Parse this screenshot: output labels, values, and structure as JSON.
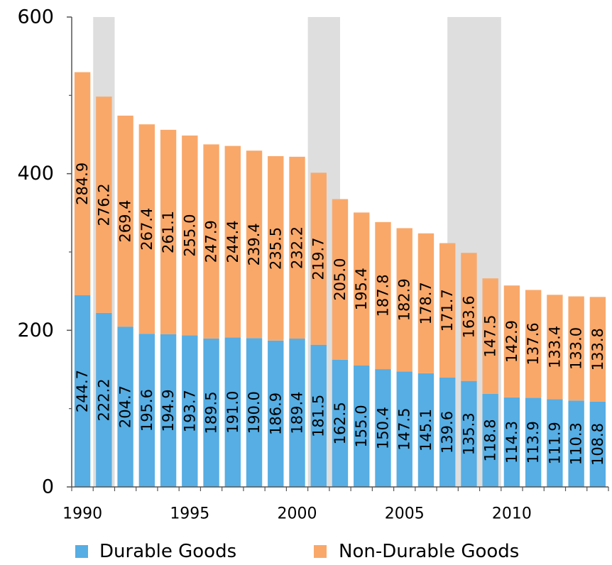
{
  "chart_data": {
    "type": "bar",
    "stacked": true,
    "title": "",
    "xlabel": "",
    "ylabel": "",
    "ylim": [
      0,
      600
    ],
    "yticks": [
      0,
      200,
      400,
      600
    ],
    "xticks": [
      1990,
      1995,
      2000,
      2005,
      2010
    ],
    "categories": [
      1990,
      1991,
      1992,
      1993,
      1994,
      1995,
      1996,
      1997,
      1998,
      1999,
      2000,
      2001,
      2002,
      2003,
      2004,
      2005,
      2006,
      2007,
      2008,
      2009,
      2010,
      2011,
      2012,
      2013,
      2014
    ],
    "series": [
      {
        "name": "Durable Goods",
        "color": "#56aee4",
        "values": [
          244.7,
          222.2,
          204.7,
          195.6,
          194.9,
          193.7,
          189.5,
          191.0,
          190.0,
          186.9,
          189.4,
          181.5,
          162.5,
          155.0,
          150.4,
          147.5,
          145.1,
          139.6,
          135.3,
          118.8,
          114.3,
          113.9,
          111.9,
          110.3,
          108.8
        ]
      },
      {
        "name": "Non-Durable Goods",
        "color": "#f9a86a",
        "values": [
          284.9,
          276.2,
          269.4,
          267.4,
          261.1,
          255.0,
          247.9,
          244.4,
          239.4,
          235.5,
          232.2,
          219.7,
          205.0,
          195.4,
          187.8,
          182.9,
          178.7,
          171.7,
          163.6,
          147.5,
          142.9,
          137.6,
          133.4,
          133.0,
          133.8
        ]
      }
    ],
    "recession_shading": [
      [
        1990.5,
        1991.5
      ],
      [
        2000.5,
        2002.0
      ],
      [
        2007.0,
        2009.5
      ]
    ],
    "shading_color": "#dedede",
    "grid": false,
    "legend_position": "bottom"
  }
}
